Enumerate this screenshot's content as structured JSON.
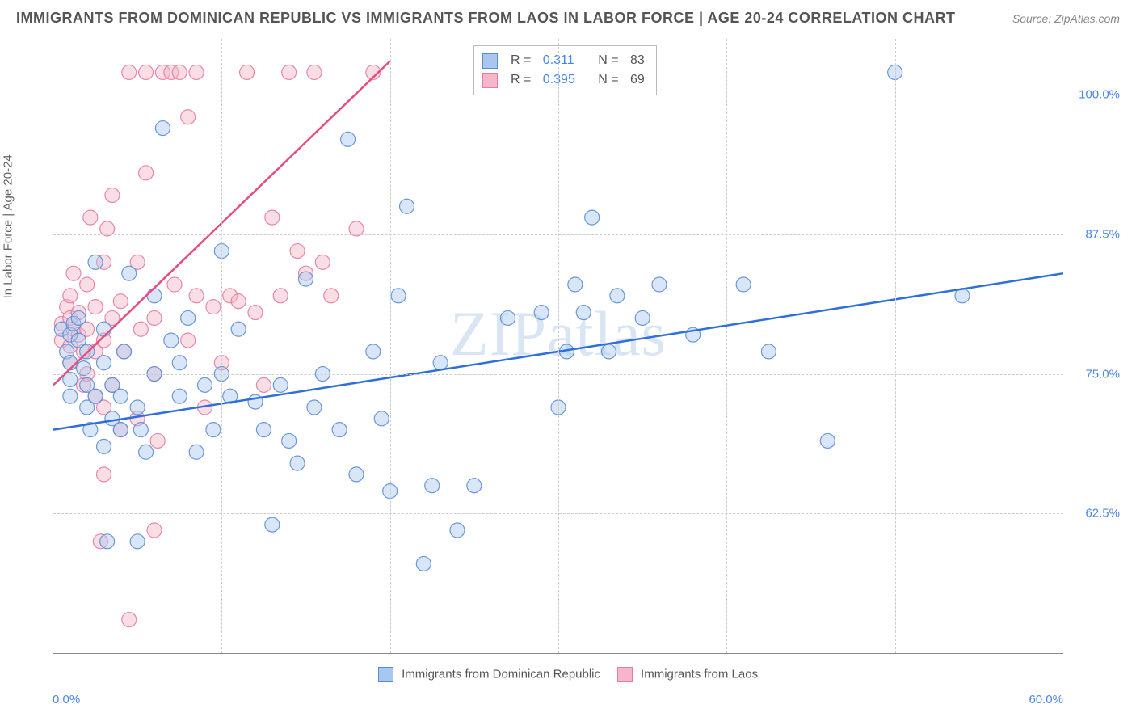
{
  "title": "IMMIGRANTS FROM DOMINICAN REPUBLIC VS IMMIGRANTS FROM LAOS IN LABOR FORCE | AGE 20-24 CORRELATION CHART",
  "source": "Source: ZipAtlas.com",
  "watermark": "ZIPatlas",
  "chart": {
    "type": "scatter",
    "ylabel": "In Labor Force | Age 20-24",
    "xlim": [
      0,
      60
    ],
    "ylim": [
      50,
      105
    ],
    "yticks": [
      {
        "v": 62.5,
        "label": "62.5%"
      },
      {
        "v": 75.0,
        "label": "75.0%"
      },
      {
        "v": 87.5,
        "label": "87.5%"
      },
      {
        "v": 100.0,
        "label": "100.0%"
      }
    ],
    "xticks": [
      10,
      20,
      30,
      40,
      50
    ],
    "x_start_label": "0.0%",
    "x_end_label": "60.0%",
    "background_color": "#ffffff",
    "grid_color": "#cccccc",
    "marker_radius": 9,
    "marker_opacity": 0.45,
    "marker_stroke_opacity": 0.9,
    "line_width": 2.5,
    "series": [
      {
        "name": "Immigrants from Dominican Republic",
        "color_fill": "#a9c7ee",
        "color_stroke": "#5b8dd6",
        "line_color": "#2e6fd9",
        "r": "0.311",
        "n": "83",
        "trend": {
          "x1": 0,
          "y1": 70,
          "x2": 60,
          "y2": 84
        },
        "points": [
          [
            0.5,
            79
          ],
          [
            0.8,
            77
          ],
          [
            1,
            78.5
          ],
          [
            1,
            76
          ],
          [
            1,
            74.5
          ],
          [
            1,
            73
          ],
          [
            1.2,
            79.5
          ],
          [
            1.5,
            80
          ],
          [
            1.5,
            78
          ],
          [
            1.8,
            75.5
          ],
          [
            2,
            77
          ],
          [
            2,
            74
          ],
          [
            2,
            72
          ],
          [
            2.2,
            70
          ],
          [
            2.5,
            85
          ],
          [
            2.5,
            73
          ],
          [
            3,
            68.5
          ],
          [
            3,
            79
          ],
          [
            3,
            76
          ],
          [
            3.2,
            60
          ],
          [
            3.5,
            71
          ],
          [
            3.5,
            74
          ],
          [
            4,
            73
          ],
          [
            4,
            70
          ],
          [
            4.2,
            77
          ],
          [
            4.5,
            84
          ],
          [
            5,
            60
          ],
          [
            5,
            72
          ],
          [
            5.2,
            70
          ],
          [
            5.5,
            68
          ],
          [
            6,
            82
          ],
          [
            6,
            75
          ],
          [
            6.5,
            97
          ],
          [
            7,
            78
          ],
          [
            7.5,
            73
          ],
          [
            7.5,
            76
          ],
          [
            8,
            80
          ],
          [
            8.5,
            68
          ],
          [
            9,
            74
          ],
          [
            9.5,
            70
          ],
          [
            10,
            75
          ],
          [
            10,
            86
          ],
          [
            10.5,
            73
          ],
          [
            11,
            79
          ],
          [
            12,
            72.5
          ],
          [
            12.5,
            70
          ],
          [
            13,
            61.5
          ],
          [
            13.5,
            74
          ],
          [
            14,
            69
          ],
          [
            14.5,
            67
          ],
          [
            15,
            83.5
          ],
          [
            15.5,
            72
          ],
          [
            16,
            75
          ],
          [
            17,
            70
          ],
          [
            17.5,
            96
          ],
          [
            18,
            66
          ],
          [
            19,
            77
          ],
          [
            19.5,
            71
          ],
          [
            20,
            64.5
          ],
          [
            20.5,
            82
          ],
          [
            21,
            90
          ],
          [
            22,
            58
          ],
          [
            22.5,
            65
          ],
          [
            23,
            76
          ],
          [
            24,
            61
          ],
          [
            25,
            65
          ],
          [
            27,
            80
          ],
          [
            29,
            80.5
          ],
          [
            30,
            72
          ],
          [
            30.5,
            77
          ],
          [
            31,
            83
          ],
          [
            31.5,
            80.5
          ],
          [
            32,
            89
          ],
          [
            33,
            77
          ],
          [
            33.5,
            82
          ],
          [
            35,
            80
          ],
          [
            36,
            83
          ],
          [
            38,
            78.5
          ],
          [
            41,
            83
          ],
          [
            42.5,
            77
          ],
          [
            46,
            69
          ],
          [
            50,
            102
          ],
          [
            54,
            82
          ]
        ]
      },
      {
        "name": "Immigrants from Laos",
        "color_fill": "#f4b6c8",
        "color_stroke": "#e77ba0",
        "line_color": "#e84b82",
        "r": "0.395",
        "n": "69",
        "trend": {
          "x1": 0,
          "y1": 74,
          "x2": 20,
          "y2": 103
        },
        "points": [
          [
            0.5,
            78
          ],
          [
            0.5,
            79.5
          ],
          [
            0.8,
            81
          ],
          [
            1,
            82
          ],
          [
            1,
            80
          ],
          [
            1,
            77.5
          ],
          [
            1,
            76
          ],
          [
            1.2,
            79
          ],
          [
            1.2,
            84
          ],
          [
            1.5,
            78.5
          ],
          [
            1.5,
            80.5
          ],
          [
            1.8,
            77
          ],
          [
            1.8,
            74
          ],
          [
            2,
            83
          ],
          [
            2,
            79
          ],
          [
            2,
            75
          ],
          [
            2.2,
            89
          ],
          [
            2.5,
            73
          ],
          [
            2.5,
            81
          ],
          [
            2.5,
            77
          ],
          [
            3,
            85
          ],
          [
            3,
            78
          ],
          [
            3,
            72
          ],
          [
            3.2,
            88
          ],
          [
            3.5,
            91
          ],
          [
            3.5,
            80
          ],
          [
            3.5,
            74
          ],
          [
            4,
            81.5
          ],
          [
            4,
            70
          ],
          [
            4.2,
            77
          ],
          [
            4.5,
            102
          ],
          [
            5,
            85
          ],
          [
            5,
            71
          ],
          [
            5.2,
            79
          ],
          [
            5.5,
            102
          ],
          [
            5.5,
            93
          ],
          [
            6,
            80
          ],
          [
            6,
            75
          ],
          [
            6,
            61
          ],
          [
            6.2,
            69
          ],
          [
            6.5,
            102
          ],
          [
            7,
            102
          ],
          [
            7.2,
            83
          ],
          [
            7.5,
            102
          ],
          [
            8,
            98
          ],
          [
            8,
            78
          ],
          [
            8.5,
            102
          ],
          [
            8.5,
            82
          ],
          [
            9,
            72
          ],
          [
            9.5,
            81
          ],
          [
            10,
            76
          ],
          [
            10.5,
            82
          ],
          [
            11,
            81.5
          ],
          [
            11.5,
            102
          ],
          [
            12,
            80.5
          ],
          [
            12.5,
            74
          ],
          [
            13,
            89
          ],
          [
            13.5,
            82
          ],
          [
            14,
            102
          ],
          [
            14.5,
            86
          ],
          [
            15,
            84
          ],
          [
            15.5,
            102
          ],
          [
            16,
            85
          ],
          [
            16.5,
            82
          ],
          [
            18,
            88
          ],
          [
            19,
            102
          ],
          [
            4.5,
            53
          ],
          [
            3,
            66
          ],
          [
            2.8,
            60
          ]
        ]
      }
    ]
  }
}
